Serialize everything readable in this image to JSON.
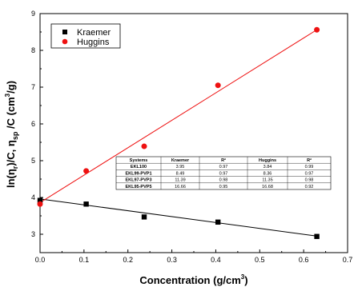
{
  "chart_data": {
    "type": "scatter",
    "xlabel": "Concentration (g/cm3)",
    "ylabel": "ln(ηr)/C, ηsp /C (cm3/g)",
    "xlim": [
      0.0,
      0.7
    ],
    "ylim": [
      2.5,
      9.0
    ],
    "x_ticks": [
      "0.0",
      "0.1",
      "0.2",
      "0.3",
      "0.4",
      "0.5",
      "0.6",
      "0.7"
    ],
    "y_ticks": [
      "3",
      "4",
      "5",
      "6",
      "7",
      "8",
      "9"
    ],
    "grid": false,
    "legend_position": "top-left",
    "series": [
      {
        "name": "Kraemer",
        "marker": "square",
        "color": "#000000",
        "x": [
          0.0,
          0.105,
          0.237,
          0.405,
          0.63
        ],
        "y": [
          3.92,
          3.82,
          3.47,
          3.33,
          2.94
        ],
        "fit": {
          "x": [
            0.0,
            0.63
          ],
          "y": [
            3.96,
            2.95
          ]
        }
      },
      {
        "name": "Huggins",
        "marker": "circle",
        "color": "#ee1111",
        "x": [
          0.0,
          0.105,
          0.237,
          0.405,
          0.63
        ],
        "y": [
          3.82,
          4.72,
          5.39,
          7.05,
          8.56
        ],
        "fit": {
          "x": [
            0.0,
            0.63
          ],
          "y": [
            3.86,
            8.56
          ]
        }
      }
    ],
    "table": {
      "headers": [
        "Systems",
        "Kraemer",
        "R²",
        "Huggins",
        "R²"
      ],
      "rows": [
        [
          "EKL100",
          "3.95",
          "0.97",
          "3.84",
          "0.99"
        ],
        [
          "EKL99-PVP1",
          "8.49",
          "0.97",
          "8.36",
          "0.97"
        ],
        [
          "EKL97-PVP3",
          "11.39",
          "0.98",
          "11.35",
          "0.98"
        ],
        [
          "EKL95-PVP5",
          "16.66",
          "0.95",
          "16.68",
          "0.92"
        ]
      ]
    }
  },
  "labels": {
    "xlabel_main": "Concentration (g/cm",
    "xlabel_sup": "3",
    "xlabel_end": ")",
    "ylabel_parts": [
      "ln(",
      "η",
      "r",
      ")/C, ",
      "η",
      "sp",
      " /C (cm",
      "3",
      "/g)"
    ]
  }
}
